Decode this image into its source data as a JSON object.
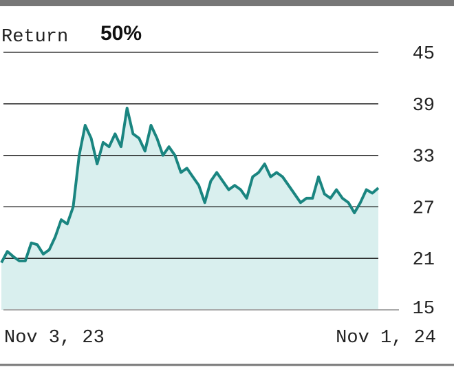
{
  "chart_data": {
    "type": "line",
    "title": "Return",
    "subtitle": "50%",
    "color": "#1a8580",
    "fill_color": "#d9efee",
    "grid": true,
    "ylim": [
      15,
      45
    ],
    "yticks": [
      15,
      21,
      27,
      33,
      39,
      45
    ],
    "xlim": [
      0,
      63
    ],
    "xticks": [
      {
        "value": 0,
        "label": "Nov 3, 23"
      },
      {
        "value": 63,
        "label": "Nov 1, 24"
      }
    ],
    "values": [
      20.5,
      21.8,
      21.2,
      20.7,
      20.7,
      22.8,
      22.6,
      21.5,
      22.0,
      23.5,
      25.5,
      25.0,
      27.0,
      33.0,
      36.5,
      35.0,
      32.0,
      34.5,
      34.0,
      35.5,
      34.0,
      38.5,
      35.5,
      35.0,
      33.5,
      36.5,
      35.0,
      33.0,
      34.0,
      33.0,
      31.0,
      31.5,
      30.5,
      29.5,
      27.5,
      30.0,
      31.0,
      30.0,
      29.0,
      29.5,
      29.0,
      28.0,
      30.5,
      31.0,
      32.0,
      30.5,
      31.0,
      30.5,
      29.5,
      28.5,
      27.5,
      28.0,
      28.0,
      30.5,
      28.5,
      28.0,
      29.0,
      28.0,
      27.5,
      26.3,
      27.5,
      29.0,
      28.6,
      29.2
    ]
  }
}
